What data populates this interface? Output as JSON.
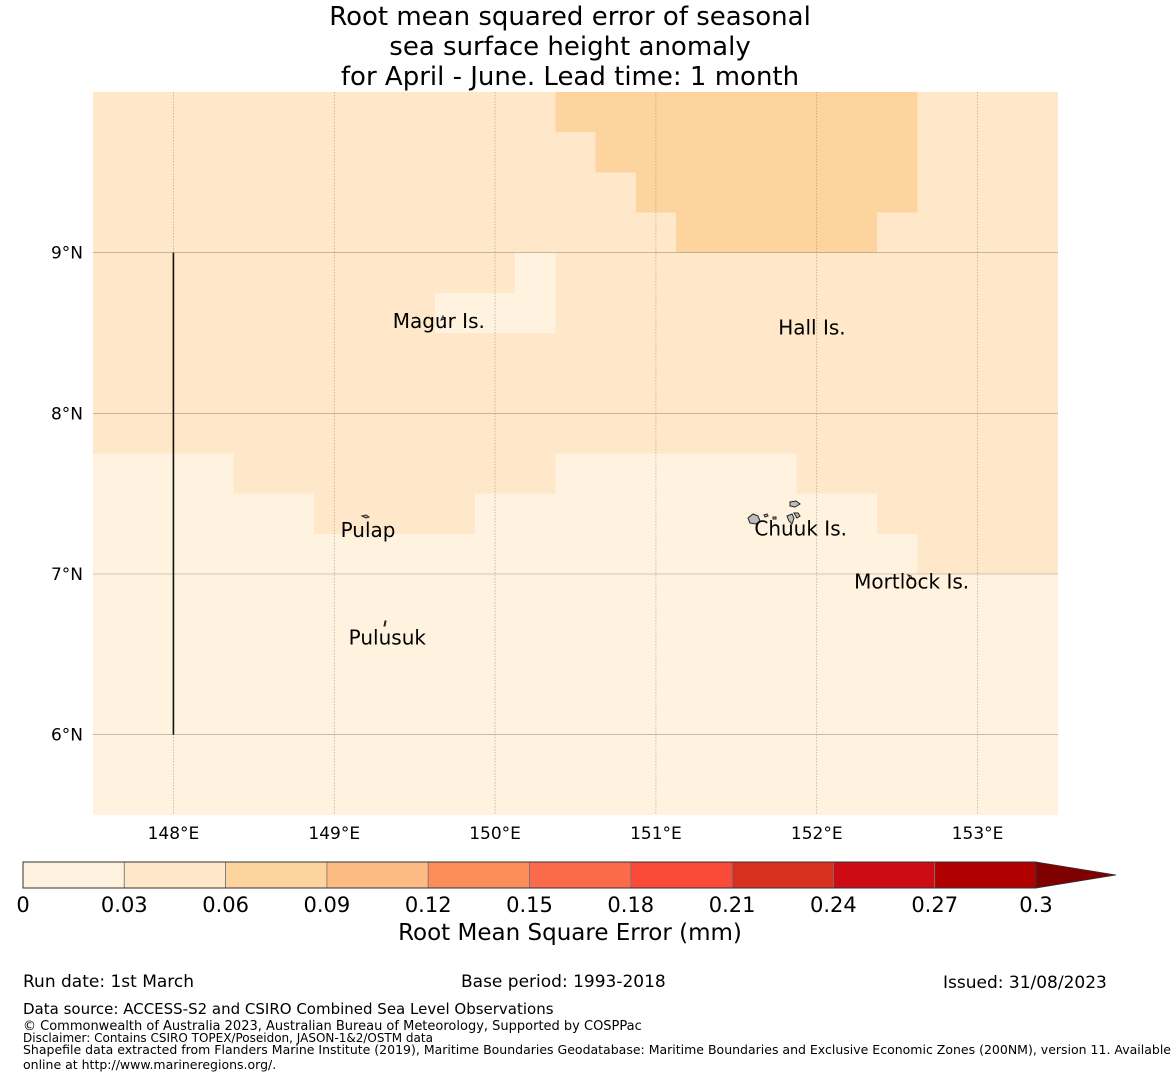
{
  "title": {
    "line1": "Root mean squared error of seasonal",
    "line2": "sea surface height anomaly",
    "line3": "for April - June. Lead time: 1 month"
  },
  "map": {
    "lon_range": [
      147.5,
      153.5
    ],
    "lat_range": [
      5.5,
      10.0
    ],
    "lon_ticks": [
      {
        "value": 148,
        "label": "148°E"
      },
      {
        "value": 149,
        "label": "149°E"
      },
      {
        "value": 150,
        "label": "150°E"
      },
      {
        "value": 151,
        "label": "151°E"
      },
      {
        "value": 152,
        "label": "152°E"
      },
      {
        "value": 153,
        "label": "153°E"
      }
    ],
    "lat_ticks": [
      {
        "value": 6,
        "label": "6°N"
      },
      {
        "value": 7,
        "label": "7°N"
      },
      {
        "value": 8,
        "label": "8°N"
      },
      {
        "value": 9,
        "label": "9°N"
      }
    ],
    "grid_lines": true,
    "eez_boundary_lon": 148.0,
    "eez_boundary_lat_range": [
      6.0,
      9.0
    ],
    "background_rmse": 0.04,
    "cells": [
      {
        "lon": [
          150.375,
          152.625
        ],
        "lat": [
          9.75,
          10.0
        ],
        "rmse": 0.07
      },
      {
        "lon": [
          150.625,
          152.625
        ],
        "lat": [
          9.5,
          9.75
        ],
        "rmse": 0.07
      },
      {
        "lon": [
          150.875,
          152.625
        ],
        "lat": [
          9.25,
          9.5
        ],
        "rmse": 0.07
      },
      {
        "lon": [
          151.125,
          152.375
        ],
        "lat": [
          9.0,
          9.25
        ],
        "rmse": 0.07
      },
      {
        "lon": [
          150.125,
          150.375
        ],
        "lat": [
          8.75,
          9.0
        ],
        "rmse": 0.02
      },
      {
        "lon": [
          149.625,
          150.375
        ],
        "lat": [
          8.5,
          8.75
        ],
        "rmse": 0.02
      },
      {
        "lon": [
          147.5,
          148.375
        ],
        "lat": [
          5.5,
          7.75
        ],
        "rmse": 0.02
      },
      {
        "lon": [
          148.375,
          148.875
        ],
        "lat": [
          5.5,
          7.5
        ],
        "rmse": 0.02
      },
      {
        "lon": [
          148.875,
          149.875
        ],
        "lat": [
          5.5,
          7.25
        ],
        "rmse": 0.02
      },
      {
        "lon": [
          149.875,
          150.375
        ],
        "lat": [
          5.5,
          7.5
        ],
        "rmse": 0.02
      },
      {
        "lon": [
          150.375,
          151.875
        ],
        "lat": [
          5.5,
          7.75
        ],
        "rmse": 0.02
      },
      {
        "lon": [
          151.875,
          152.375
        ],
        "lat": [
          5.5,
          7.5
        ],
        "rmse": 0.02
      },
      {
        "lon": [
          152.375,
          152.625
        ],
        "lat": [
          5.5,
          7.25
        ],
        "rmse": 0.02
      },
      {
        "lon": [
          152.625,
          153.5
        ],
        "lat": [
          5.5,
          7.0
        ],
        "rmse": 0.02
      }
    ],
    "places": [
      {
        "name": "Magur Is.",
        "lon": 149.65,
        "lat": 8.53
      },
      {
        "name": "Hall Is.",
        "lon": 151.97,
        "lat": 8.49
      },
      {
        "name": "Pulap",
        "lon": 149.21,
        "lat": 7.23
      },
      {
        "name": "Chuuk Is.",
        "lon": 151.9,
        "lat": 7.24
      },
      {
        "name": "Mortlock Is.",
        "lon": 152.59,
        "lat": 6.91
      },
      {
        "name": "Pulusuk",
        "lon": 149.33,
        "lat": 6.56
      }
    ]
  },
  "colorbar": {
    "bounds": [
      0,
      0.03,
      0.06,
      0.09,
      0.12,
      0.15,
      0.18,
      0.21,
      0.24,
      0.27,
      0.3
    ],
    "tick_labels": [
      "0",
      "0.03",
      "0.06",
      "0.09",
      "0.12",
      "0.15",
      "0.18",
      "0.21",
      "0.24",
      "0.27",
      "0.3"
    ],
    "colors": [
      "#fff2de",
      "#fee8c9",
      "#fdd49e",
      "#fdbb84",
      "#fc8d59",
      "#fc6a4c",
      "#fb4b38",
      "#d7301f",
      "#cc0b15",
      "#b10000"
    ],
    "extend_color": "#7f0000",
    "label": "Root Mean Square Error (mm)"
  },
  "footer": {
    "run_date": "Run date: 1st March",
    "base_period": "Base period: 1993-2018",
    "issued": "Issued: 31/08/2023",
    "data_source": "Data source: ACCESS-S2 and CSIRO Combined Sea Level Observations",
    "copyright": "© Commonwealth of Australia 2023, Australian Bureau of Meteorology, Supported by COSPPac",
    "disclaimer": "Disclaimer: Contains CSIRO TOPEX/Poseidon, JASON-1&2/OSTM data",
    "shapefile_line1": "Shapefile data extracted from Flanders Marine Institute (2019), Maritime Boundaries Geodatabase: Maritime Boundaries and Exclusive Economic Zones (200NM), version 11. Available",
    "shapefile_line2": "online at http://www.marineregions.org/."
  }
}
